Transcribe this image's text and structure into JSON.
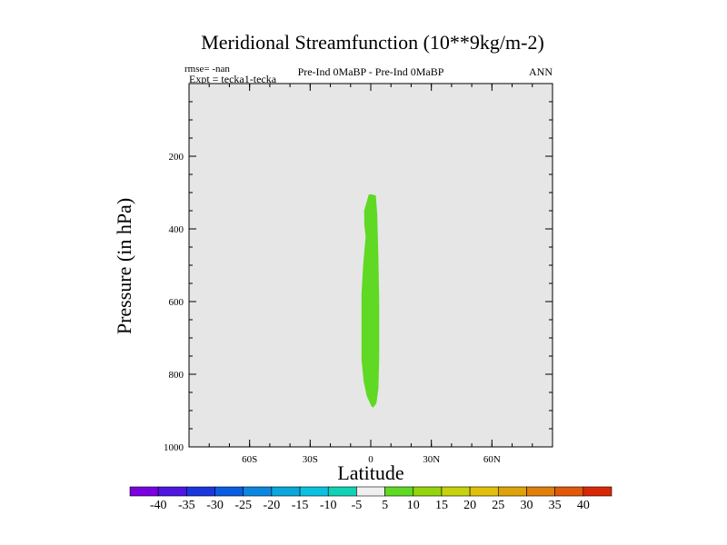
{
  "chart_data": {
    "type": "contour",
    "title": "Meridional Streamfunction (10**9kg/m-2)",
    "info": {
      "rmse": "rmse= -nan",
      "expt": "Expt = tecka1-tecka",
      "comparison": "Pre-Ind 0MaBP - Pre-Ind 0MaBP",
      "season": "ANN"
    },
    "xlabel": "Latitude",
    "ylabel": "Pressure (in hPa)",
    "xlim": [
      -90,
      90
    ],
    "ylim": [
      1000,
      0
    ],
    "x_ticks": [
      {
        "value": -60,
        "label": "60S"
      },
      {
        "value": -30,
        "label": "30S"
      },
      {
        "value": 0,
        "label": "0"
      },
      {
        "value": 30,
        "label": "30N"
      },
      {
        "value": 60,
        "label": "60N"
      }
    ],
    "y_ticks": [
      {
        "value": 200,
        "label": "200"
      },
      {
        "value": 400,
        "label": "400"
      },
      {
        "value": 600,
        "label": "600"
      },
      {
        "value": 800,
        "label": "800"
      },
      {
        "value": 1000,
        "label": "1000"
      }
    ],
    "background_color": "#e6e6e6",
    "filled_region": {
      "level": "5 to 10",
      "color": "#5fd923",
      "outline": [
        [
          0.5,
          305
        ],
        [
          2.5,
          308
        ],
        [
          3.2,
          360
        ],
        [
          3.8,
          480
        ],
        [
          4.2,
          600
        ],
        [
          4.2,
          750
        ],
        [
          3.8,
          840
        ],
        [
          2.8,
          880
        ],
        [
          1.2,
          892
        ],
        [
          0.3,
          888
        ],
        [
          -2.0,
          860
        ],
        [
          -3.5,
          820
        ],
        [
          -4.6,
          760
        ],
        [
          -4.6,
          580
        ],
        [
          -3.8,
          500
        ],
        [
          -2.5,
          420
        ],
        [
          -3.2,
          390
        ],
        [
          -3.3,
          350
        ],
        [
          -1.0,
          305
        ]
      ]
    },
    "colorbar": {
      "labels": [
        "-40",
        "-35",
        "-30",
        "-25",
        "-20",
        "-15",
        "-10",
        "-5",
        "5",
        "10",
        "15",
        "20",
        "25",
        "30",
        "35",
        "40"
      ],
      "colors": [
        "#7a00e0",
        "#4e16e0",
        "#1b36dd",
        "#0a5ce0",
        "#0a86e0",
        "#0aa6dc",
        "#0ac2e0",
        "#11d2b4",
        "#efefef",
        "#5fd923",
        "#94d40c",
        "#c6d20c",
        "#e0c00a",
        "#e0a20a",
        "#e07f0a",
        "#e0590a",
        "#d82808"
      ]
    }
  }
}
